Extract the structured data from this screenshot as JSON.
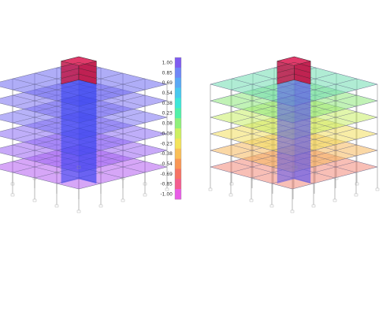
{
  "legend": {
    "ticks": [
      "1.00",
      "0.85",
      "0.69",
      "0.54",
      "0.38",
      "0.23",
      "0.08",
      "-0.08",
      "-0.23",
      "-0.38",
      "-0.54",
      "-0.69",
      "-0.85",
      "-1.00"
    ],
    "colors": [
      "#7f5cf0",
      "#6f86f6",
      "#5aa8f4",
      "#49c8ee",
      "#3ee6d8",
      "#52f0a8",
      "#8ff07a",
      "#cdef62",
      "#f3e35b",
      "#f9bf57",
      "#f99755",
      "#f67264",
      "#f45d8f",
      "#e85ce6"
    ]
  },
  "left_model": {
    "frame_color": "#8a8a8a",
    "floor_colors": [
      "#b55cf0",
      "#9a63f2",
      "#8a6cf4",
      "#7c72f2",
      "#7a6ff0",
      "#6e6af0"
    ],
    "core_color": "#2f3df0",
    "roof_color": "#c0184a"
  },
  "right_model": {
    "frame_color": "#8a8a8a",
    "floor_colors": [
      "#f28a7a",
      "#f6b85c",
      "#f3de5c",
      "#c8ee66",
      "#8ee77a",
      "#6fdcb0"
    ],
    "core_color": "#5a52ee",
    "roof_color": "#c0184a"
  }
}
